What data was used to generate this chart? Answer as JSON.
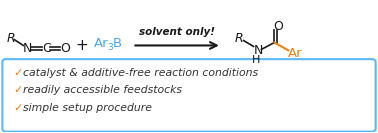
{
  "bg_color": "#ffffff",
  "blue_color": "#4da6e8",
  "orange_color": "#e8821a",
  "black_color": "#1a1a1a",
  "box_color": "#5bb8f5",
  "bullet_texts": [
    "catalyst & additive-free reaction conditions",
    "readily accessible feedstocks",
    "simple setup procedure"
  ],
  "arrow_label": "solvent only!",
  "figsize": [
    3.78,
    1.33
  ],
  "dpi": 100
}
